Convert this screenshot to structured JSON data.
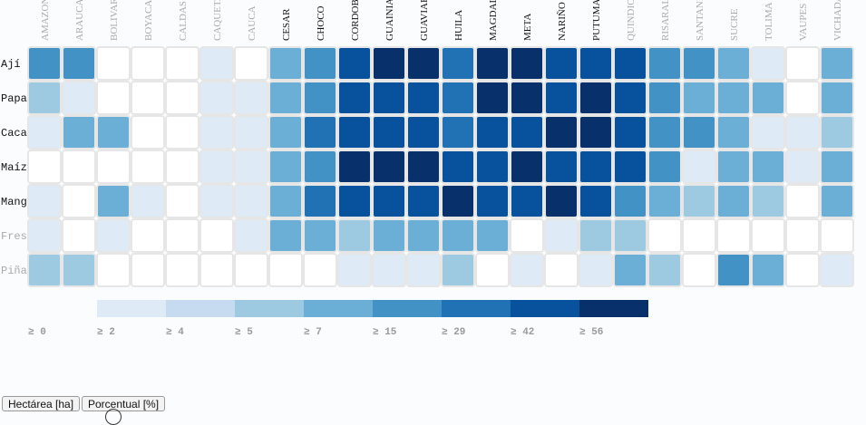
{
  "chart_data": {
    "type": "heatmap",
    "columns": [
      "AMAZONAS",
      "ARAUCA",
      "BOLIVAR",
      "BOYACA",
      "CALDAS",
      "CAQUETA",
      "CAUCA",
      "CESAR",
      "CHOCO",
      "CORDOBA",
      "GUAINIA",
      "GUAVIARE",
      "HUILA",
      "MAGDALENA",
      "META",
      "NARIÑO",
      "PUTUMAYO",
      "QUINDIO",
      "RISARALDA",
      "SANTANDER",
      "SUCRE",
      "TOLIMA",
      "VAUPES",
      "VICHADA"
    ],
    "rows": [
      "Ají",
      "Papa",
      "Caca",
      "Maíz",
      "Mang",
      "Fres",
      "Piña"
    ],
    "values": [
      [
        18,
        20,
        null,
        null,
        null,
        1,
        null,
        10,
        16,
        45,
        60,
        60,
        30,
        60,
        60,
        45,
        45,
        45,
        20,
        20,
        10,
        3,
        null,
        10
      ],
      [
        5,
        1,
        null,
        null,
        null,
        1,
        3,
        10,
        15,
        45,
        45,
        45,
        30,
        60,
        60,
        45,
        60,
        45,
        18,
        10,
        10,
        10,
        null,
        10
      ],
      [
        3,
        10,
        10,
        null,
        null,
        1,
        3,
        10,
        30,
        45,
        45,
        45,
        30,
        45,
        45,
        60,
        60,
        45,
        20,
        20,
        10,
        3,
        3,
        5
      ],
      [
        null,
        null,
        null,
        null,
        null,
        1,
        3,
        10,
        20,
        60,
        60,
        60,
        45,
        45,
        60,
        45,
        45,
        45,
        18,
        1,
        10,
        10,
        1,
        10
      ],
      [
        1,
        null,
        10,
        1,
        null,
        1,
        3,
        10,
        30,
        45,
        45,
        45,
        60,
        45,
        45,
        60,
        45,
        20,
        10,
        5,
        10,
        5,
        null,
        10
      ],
      [
        1,
        null,
        1,
        null,
        null,
        null,
        3,
        10,
        10,
        5,
        10,
        10,
        10,
        10,
        null,
        3,
        5,
        5,
        null,
        null,
        null,
        null,
        null,
        null
      ],
      [
        5,
        5,
        null,
        null,
        null,
        null,
        null,
        null,
        null,
        1,
        1,
        3,
        5,
        null,
        3,
        null,
        1,
        10,
        5,
        null,
        20,
        10,
        null,
        3
      ]
    ],
    "row_label_color": [
      "#111111",
      "#111111",
      "#111111",
      "#111111",
      "#111111",
      "#aaaaaa",
      "#aaaaaa"
    ],
    "column_label_color": [
      "#aaaaaa",
      "#aaaaaa",
      "#aaaaaa",
      "#aaaaaa",
      "#aaaaaa",
      "#aaaaaa",
      "#aaaaaa",
      "#111111",
      "#111111",
      "#111111",
      "#111111",
      "#111111",
      "#111111",
      "#111111",
      "#111111",
      "#111111",
      "#111111",
      "#aaaaaa",
      "#aaaaaa",
      "#aaaaaa",
      "#aaaaaa",
      "#aaaaaa",
      "#aaaaaa",
      "#aaaaaa"
    ],
    "legend": {
      "thresholds": [
        0,
        2,
        4,
        5,
        7,
        15,
        29,
        42,
        56
      ],
      "labels": [
        "≥ 0",
        "≥ 2",
        "≥ 4",
        "≥ 5",
        "≥ 7",
        "≥ 15",
        "≥ 29",
        "≥ 42",
        "≥ 56"
      ],
      "colors": [
        "#ffffff",
        "#deebf7",
        "#c6dbef",
        "#9ecae1",
        "#6baed6",
        "#4292c6",
        "#2171b5",
        "#08519c",
        "#08306b"
      ]
    },
    "grid": true,
    "legend_position": "bottom"
  },
  "buttons": {
    "hectare_label": "Hectárea [ha]",
    "percent_label": "Porcentual [%]"
  }
}
